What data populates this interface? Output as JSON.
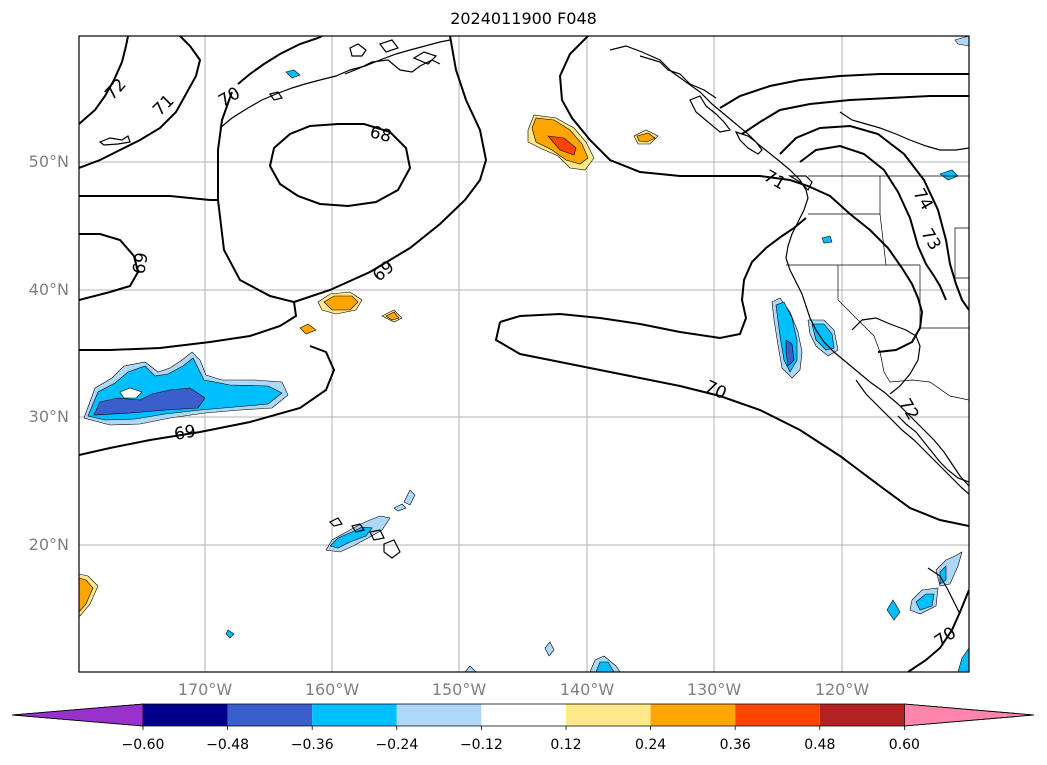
{
  "title": "2024011900 F048",
  "lat_labels": [
    "50°N",
    "40°N",
    "30°N",
    "20°N"
  ],
  "lon_labels": [
    "170°W",
    "160°W",
    "150°W",
    "140°W",
    "130°W",
    "120°W"
  ],
  "contour_labels": [
    "72",
    "71",
    "70",
    "68",
    "69",
    "69",
    "69",
    "70",
    "71",
    "74",
    "73",
    "72",
    "70"
  ],
  "colorbar": {
    "ticks": [
      "−0.60",
      "−0.48",
      "−0.36",
      "−0.24",
      "−0.12",
      "0.12",
      "0.24",
      "0.36",
      "0.48",
      "0.60"
    ],
    "colors": [
      "#9932cc",
      "#00008b",
      "#3a5fcd",
      "#00bfff",
      "#add8f7",
      "#ffffff",
      "#ffe98a",
      "#ffa500",
      "#ff4500",
      "#b22222",
      "#ff85ad"
    ]
  }
}
